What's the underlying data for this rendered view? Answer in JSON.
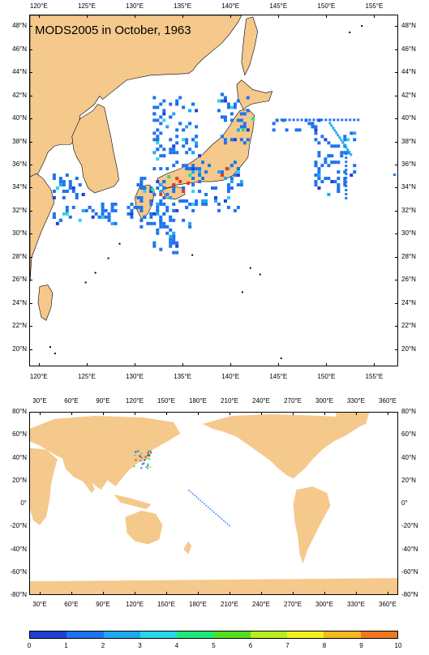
{
  "title": "MODS2005 in October, 1963",
  "top_map": {
    "lon_labels": [
      "120°E",
      "125°E",
      "130°E",
      "135°E",
      "140°E",
      "145°E",
      "150°E",
      "155°E"
    ],
    "lat_labels": [
      "48°N",
      "46°N",
      "44°N",
      "42°N",
      "40°N",
      "38°N",
      "36°N",
      "34°N",
      "32°N",
      "30°N",
      "28°N",
      "26°N",
      "24°N",
      "22°N",
      "20°N"
    ]
  },
  "bottom_map": {
    "lon_labels": [
      "30°E",
      "60°E",
      "90°E",
      "120°E",
      "150°E",
      "180°E",
      "210°E",
      "240°E",
      "270°E",
      "300°E",
      "330°E",
      "360°E"
    ],
    "lat_labels": [
      "80°N",
      "60°N",
      "40°N",
      "20°N",
      "0°",
      "-20°N",
      "-40°N",
      "-60°N",
      "-80°N"
    ]
  },
  "colorbar": {
    "labels": [
      "0",
      "1",
      "2",
      "3",
      "4",
      "5",
      "6",
      "7",
      "8",
      "9",
      "10"
    ],
    "colors": [
      "#1f3fd6",
      "#1e73ee",
      "#1ea8f0",
      "#28d8e8",
      "#20e878",
      "#50e020",
      "#b8ee20",
      "#f4f020",
      "#f4b820",
      "#f07820",
      "#e83820"
    ]
  },
  "colors": {
    "land": "#f5c88c",
    "ocean": "#ffffff"
  }
}
